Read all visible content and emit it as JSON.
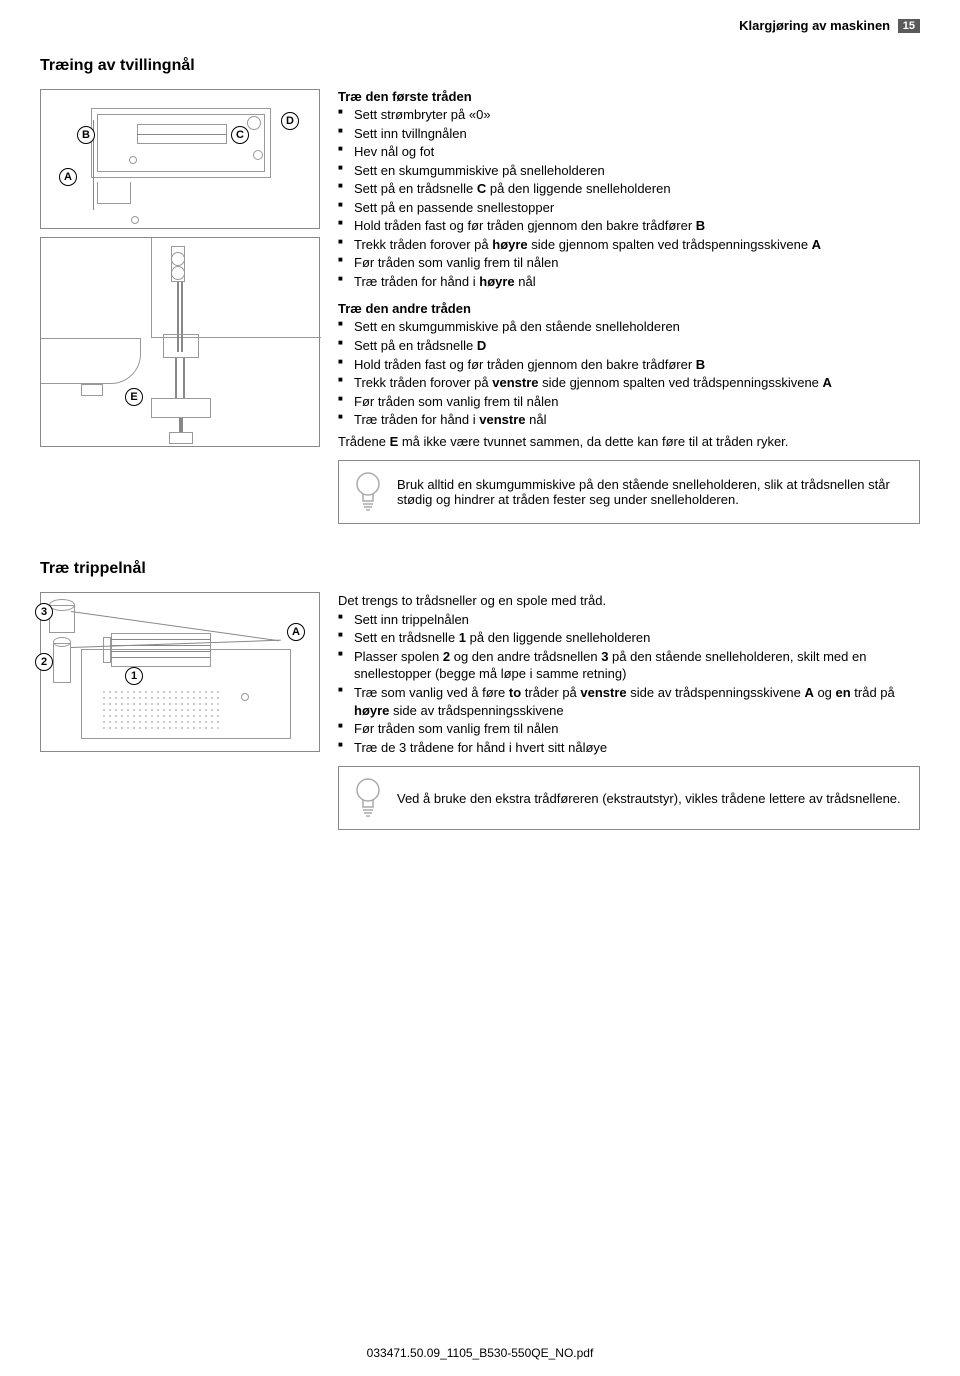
{
  "header": {
    "title": "Klargjøring av maskinen",
    "page": "15"
  },
  "section1": {
    "title": "Træing av tvillingnål",
    "block1": {
      "title": "Træ den første tråden",
      "items": [
        "Sett strømbryter på «0»",
        "Sett inn tvillngnålen",
        "Hev nål og fot",
        "Sett en skumgummiskive på snelleholderen",
        "Sett på en trådsnelle <b>C</b> på den liggende snelleholderen",
        "Sett på en passende snellestopper",
        "Hold tråden fast og før tråden gjennom den bakre trådfører <b>B</b>",
        "Trekk tråden forover på <b>høyre</b> side gjennom spalten ved trådspenningsskivene <b>A</b>",
        "Før tråden som vanlig frem til nålen",
        "Træ tråden for hånd i <b>høyre</b> nål"
      ]
    },
    "block2": {
      "title": "Træ den andre tråden",
      "items": [
        "Sett en skumgummiskive på den stående snelleholderen",
        "Sett på en trådsnelle <b>D</b>",
        "Hold tråden fast og før tråden gjennom den bakre trådfører <b>B</b>",
        "Trekk tråden forover på <b>venstre</b> side gjennom spalten ved trådspenningsskivene <b>A</b>",
        "Før tråden som vanlig frem til nålen",
        "Træ tråden for hånd i <b>venstre</b> nål"
      ],
      "trailer": "Trådene <b>E</b> må ikke være tvunnet sammen, da dette kan føre til at tråden ryker."
    },
    "tip": "Bruk alltid en skumgummiskive på den stående snelleholderen, slik at trådsnellen står stødig og hindrer at tråden fester seg under snelleholderen.",
    "diagram1_labels": {
      "A": "A",
      "B": "B",
      "C": "C",
      "D": "D"
    },
    "diagram2_labels": {
      "E": "E"
    }
  },
  "section2": {
    "title": "Træ trippelnål",
    "intro": "Det trengs to trådsneller og en spole med tråd.",
    "items": [
      "Sett inn trippelnålen",
      "Sett en trådsnelle <b>1</b> på den liggende snelleholderen",
      "Plasser spolen <b>2</b> og den andre trådsnellen <b>3</b> på den stående snelleholderen, skilt med en snellestopper (begge må løpe i samme retning)",
      "Træ som vanlig ved å føre <b>to</b> tråder på <b>venstre</b> side av trådspenningsskivene <b>A</b> og <b>en</b> tråd på <b>høyre</b> side av trådspenningsskivene",
      "Før tråden som vanlig frem til nålen",
      "Træ de 3 trådene for hånd i hvert sitt nåløye"
    ],
    "diagram_labels": {
      "l1": "1",
      "l2": "2",
      "l3": "3",
      "A": "A"
    },
    "tip": "Ved å bruke den ekstra trådføreren (ekstrautstyr), vikles trådene lettere av trådsnellene."
  },
  "footer": "033471.50.09_1105_B530-550QE_NO.pdf"
}
